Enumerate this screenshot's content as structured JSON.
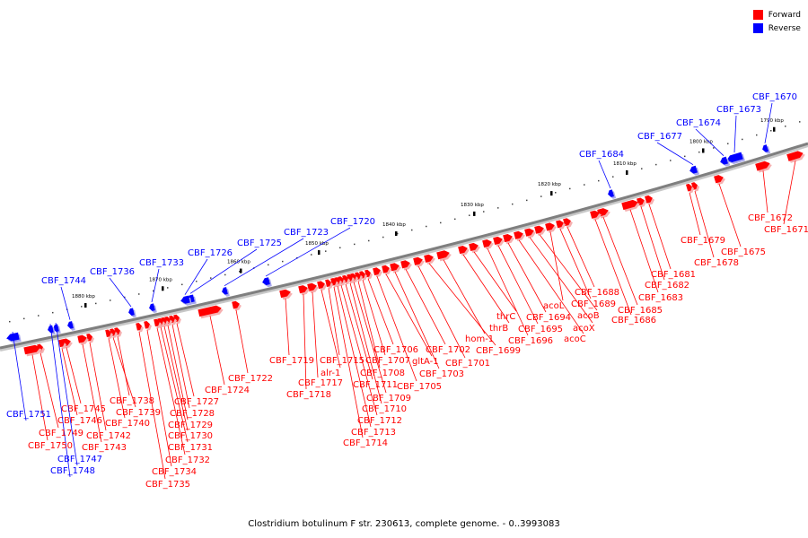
{
  "title": "Clostridium botulinum F str. 230613, complete genome. - 0..3993083",
  "colors": {
    "forward": "#ff0000",
    "reverse": "#0000ff",
    "backbone": "#7f7f7f"
  },
  "legend": [
    {
      "label": "Forward",
      "color": "#ff0000"
    },
    {
      "label": "Reverse",
      "color": "#0000ff"
    }
  ],
  "ticks": [
    {
      "label": "1790 kbp"
    },
    {
      "label": "1800 kbp"
    },
    {
      "label": "1810 kbp"
    },
    {
      "label": "1820 kbp"
    },
    {
      "label": "1830 kbp"
    },
    {
      "label": "1840 kbp"
    },
    {
      "label": "1850 kbp"
    },
    {
      "label": "1860 kbp"
    },
    {
      "label": "1870 kbp"
    },
    {
      "label": "1880 kbp"
    }
  ],
  "genes": [
    {
      "name": "CBF_1670",
      "strand": "reverse"
    },
    {
      "name": "CBF_1671",
      "strand": "forward"
    },
    {
      "name": "CBF_1672",
      "strand": "forward"
    },
    {
      "name": "CBF_1673",
      "strand": "reverse"
    },
    {
      "name": "CBF_1674",
      "strand": "reverse"
    },
    {
      "name": "CBF_1675",
      "strand": "forward"
    },
    {
      "name": "CBF_1677",
      "strand": "reverse"
    },
    {
      "name": "CBF_1678",
      "strand": "forward"
    },
    {
      "name": "CBF_1679",
      "strand": "forward"
    },
    {
      "name": "CBF_1681",
      "strand": "forward"
    },
    {
      "name": "CBF_1682",
      "strand": "forward"
    },
    {
      "name": "CBF_1683",
      "strand": "forward"
    },
    {
      "name": "CBF_1684",
      "strand": "reverse"
    },
    {
      "name": "CBF_1685",
      "strand": "forward"
    },
    {
      "name": "CBF_1686",
      "strand": "forward"
    },
    {
      "name": "CBF_1688",
      "strand": "forward"
    },
    {
      "name": "CBF_1689",
      "strand": "forward"
    },
    {
      "name": "acoL",
      "strand": "forward"
    },
    {
      "name": "acoB",
      "strand": "forward"
    },
    {
      "name": "acoX",
      "strand": "forward"
    },
    {
      "name": "acoC",
      "strand": "forward"
    },
    {
      "name": "CBF_1694",
      "strand": "forward"
    },
    {
      "name": "CBF_1695",
      "strand": "forward"
    },
    {
      "name": "CBF_1696",
      "strand": "forward"
    },
    {
      "name": "thrC",
      "strand": "forward"
    },
    {
      "name": "thrB",
      "strand": "forward"
    },
    {
      "name": "hom-1",
      "strand": "forward"
    },
    {
      "name": "CBF_1699",
      "strand": "forward"
    },
    {
      "name": "CBF_1701",
      "strand": "forward"
    },
    {
      "name": "CBF_1702",
      "strand": "forward"
    },
    {
      "name": "CBF_1703",
      "strand": "forward"
    },
    {
      "name": "gltA-1",
      "strand": "forward"
    },
    {
      "name": "CBF_1705",
      "strand": "forward"
    },
    {
      "name": "CBF_1706",
      "strand": "forward"
    },
    {
      "name": "CBF_1707",
      "strand": "forward"
    },
    {
      "name": "CBF_1708",
      "strand": "forward"
    },
    {
      "name": "CBF_1709",
      "strand": "forward"
    },
    {
      "name": "CBF_1710",
      "strand": "forward"
    },
    {
      "name": "CBF_1711",
      "strand": "forward"
    },
    {
      "name": "CBF_1712",
      "strand": "forward"
    },
    {
      "name": "CBF_1713",
      "strand": "forward"
    },
    {
      "name": "CBF_1714",
      "strand": "forward"
    },
    {
      "name": "CBF_1715",
      "strand": "forward"
    },
    {
      "name": "alr-1",
      "strand": "forward"
    },
    {
      "name": "CBF_1717",
      "strand": "forward"
    },
    {
      "name": "CBF_1718",
      "strand": "forward"
    },
    {
      "name": "CBF_1719",
      "strand": "forward"
    },
    {
      "name": "CBF_1720",
      "strand": "reverse"
    },
    {
      "name": "CBF_1722",
      "strand": "forward"
    },
    {
      "name": "CBF_1723",
      "strand": "reverse"
    },
    {
      "name": "CBF_1724",
      "strand": "forward"
    },
    {
      "name": "CBF_1725",
      "strand": "reverse"
    },
    {
      "name": "CBF_1726",
      "strand": "reverse"
    },
    {
      "name": "CBF_1727",
      "strand": "forward"
    },
    {
      "name": "CBF_1728",
      "strand": "forward"
    },
    {
      "name": "CBF_1729",
      "strand": "forward"
    },
    {
      "name": "CBF_1730",
      "strand": "forward"
    },
    {
      "name": "CBF_1731",
      "strand": "forward"
    },
    {
      "name": "CBF_1732",
      "strand": "forward"
    },
    {
      "name": "CBF_1733",
      "strand": "reverse"
    },
    {
      "name": "CBF_1734",
      "strand": "forward"
    },
    {
      "name": "CBF_1735",
      "strand": "forward"
    },
    {
      "name": "CBF_1736",
      "strand": "reverse"
    },
    {
      "name": "CBF_1738",
      "strand": "forward"
    },
    {
      "name": "CBF_1739",
      "strand": "forward"
    },
    {
      "name": "CBF_1740",
      "strand": "forward"
    },
    {
      "name": "CBF_1742",
      "strand": "forward"
    },
    {
      "name": "CBF_1743",
      "strand": "forward"
    },
    {
      "name": "CBF_1744",
      "strand": "reverse"
    },
    {
      "name": "CBF_1745",
      "strand": "forward"
    },
    {
      "name": "CBF_1746",
      "strand": "forward"
    },
    {
      "name": "CBF_1747",
      "strand": "reverse"
    },
    {
      "name": "CBF_1748",
      "strand": "reverse"
    },
    {
      "name": "CBF_1749",
      "strand": "forward"
    },
    {
      "name": "CBF_1750",
      "strand": "forward"
    },
    {
      "name": "CBF_1751",
      "strand": "reverse"
    }
  ]
}
